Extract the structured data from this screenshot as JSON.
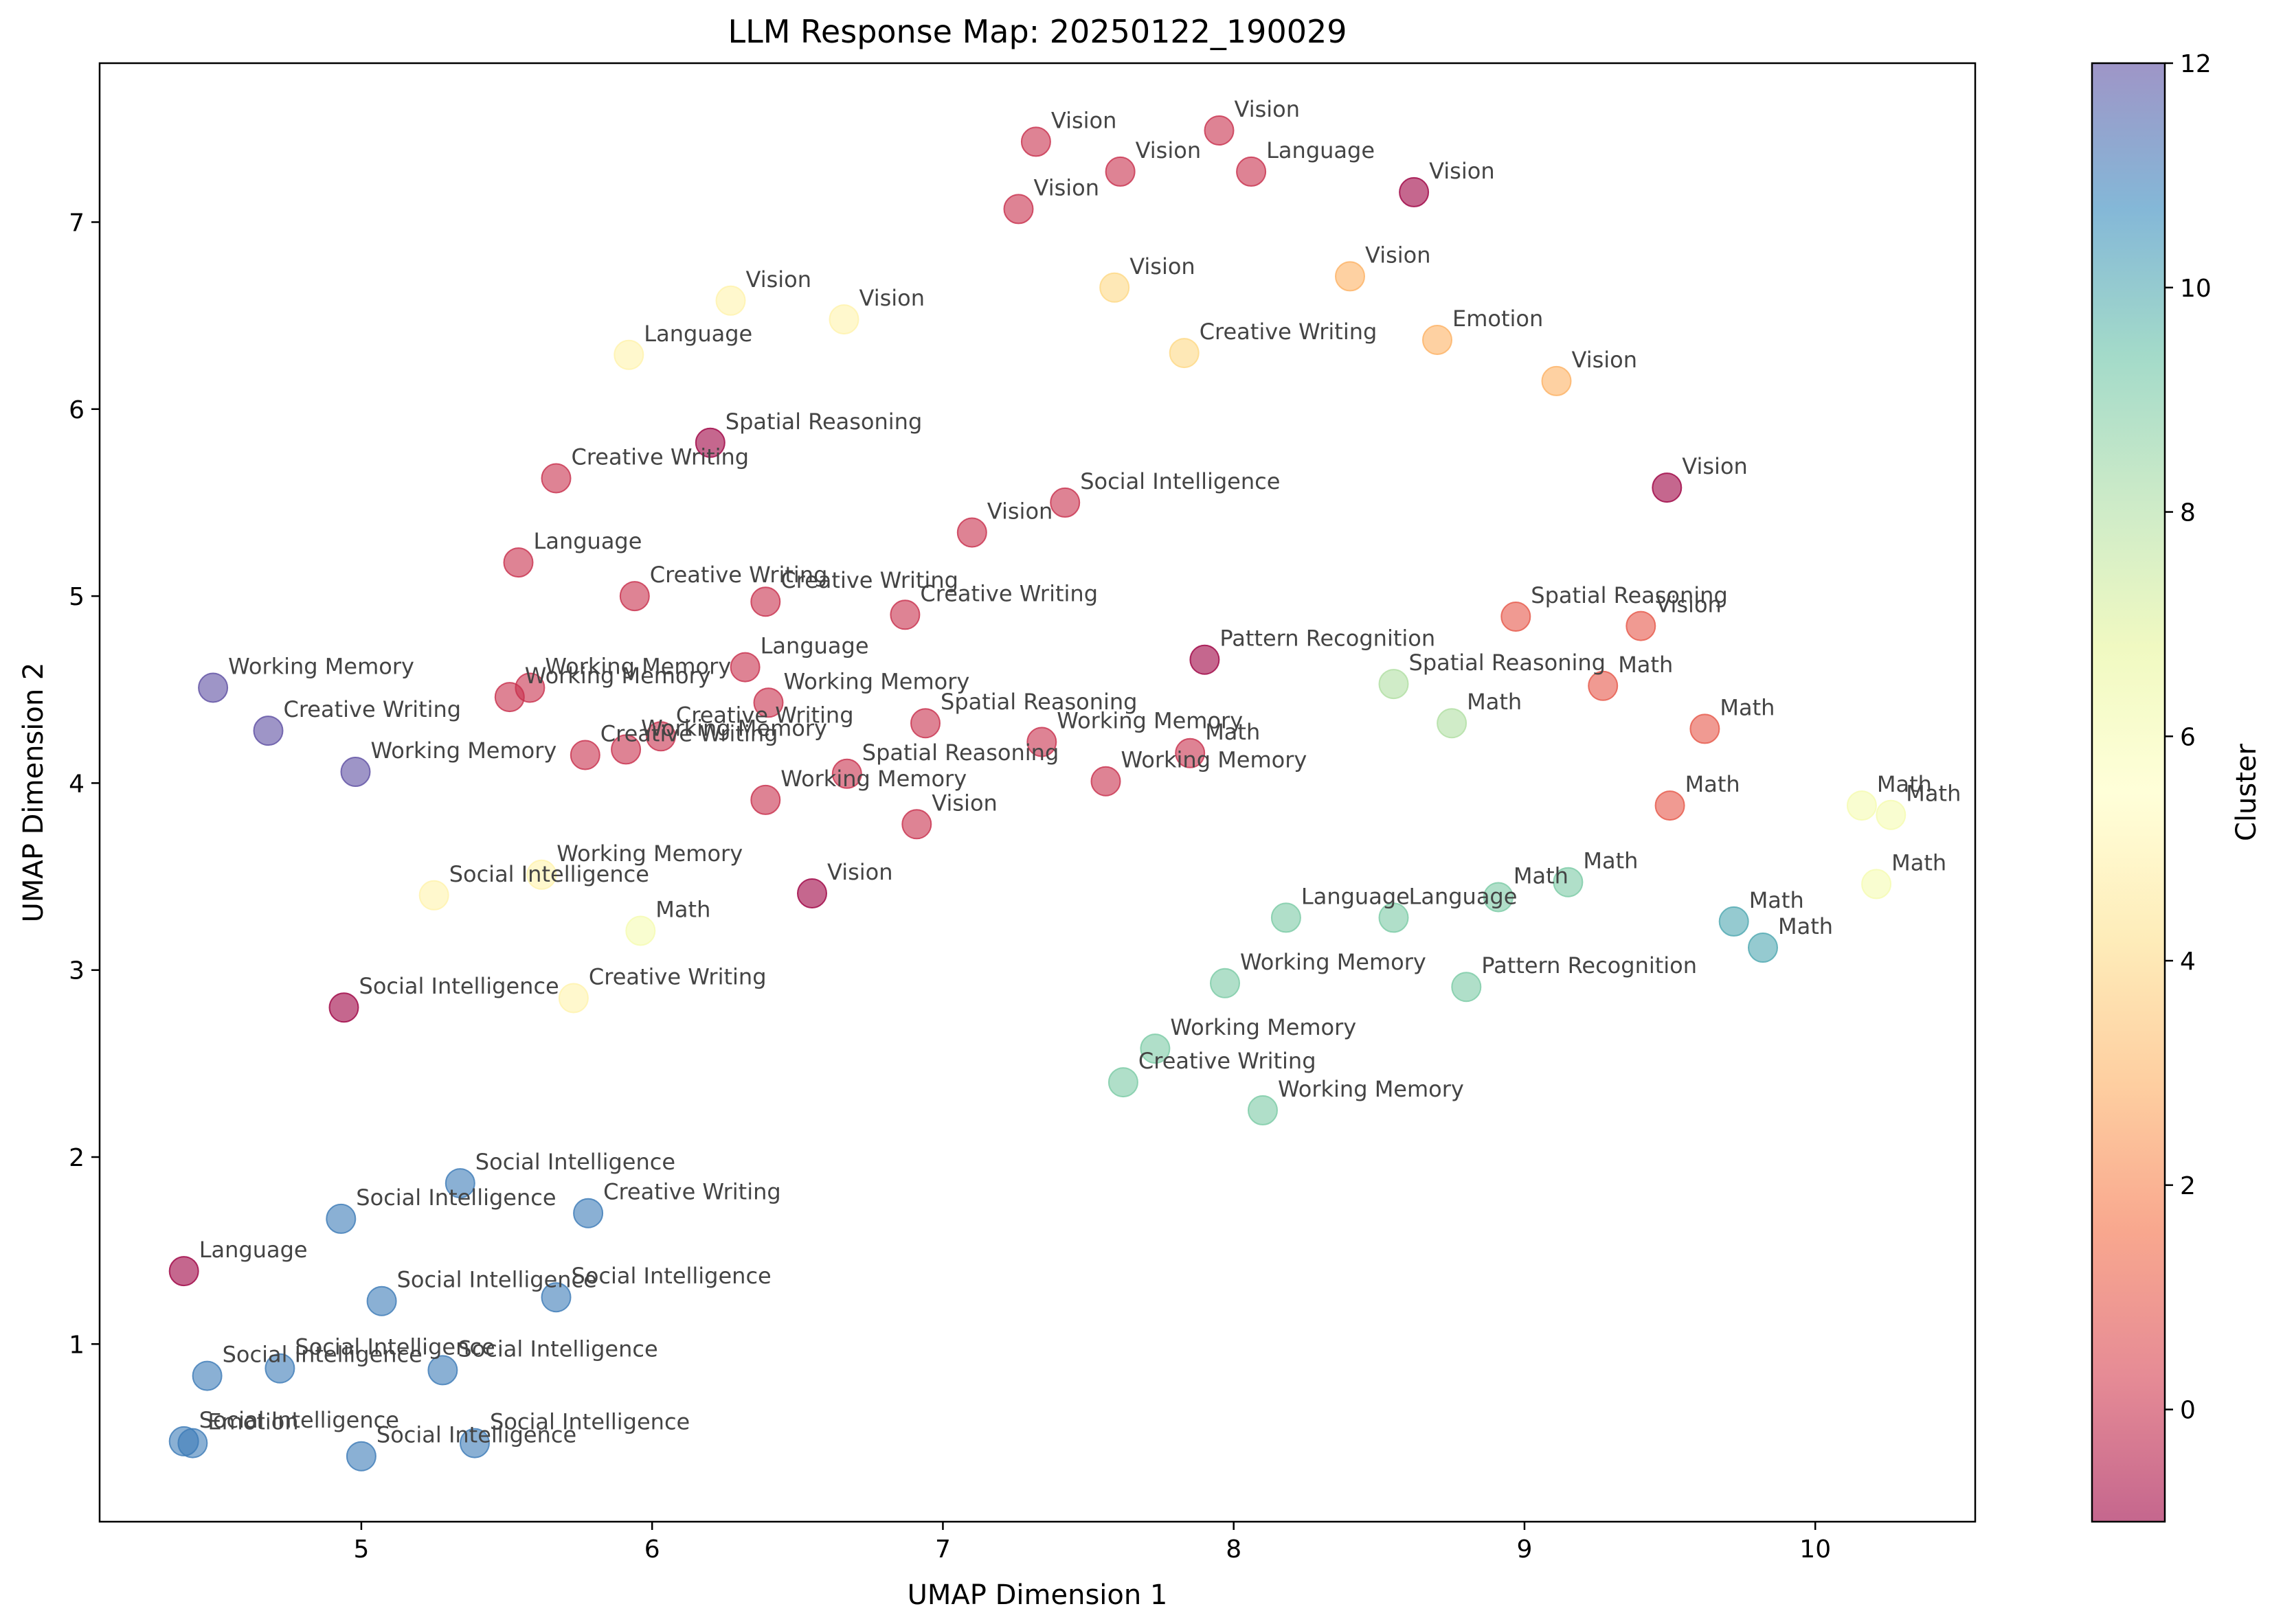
{
  "chart_data": {
    "type": "scatter",
    "title": "LLM Response Map: 20250122_190029",
    "xlabel": "UMAP Dimension 1",
    "ylabel": "UMAP Dimension 2",
    "xlim": [
      4.1,
      10.55
    ],
    "ylim": [
      0.05,
      7.85
    ],
    "xticks": [
      5,
      6,
      7,
      8,
      9,
      10
    ],
    "yticks": [
      1,
      2,
      3,
      4,
      5,
      6,
      7
    ],
    "grid": false,
    "colorbar": {
      "label": "Cluster",
      "min": -1,
      "max": 12,
      "ticks": [
        0,
        2,
        4,
        6,
        8,
        10,
        12
      ],
      "colormap": "Spectral",
      "alpha": 0.6
    },
    "points": [
      {
        "x": 7.32,
        "y": 7.43,
        "cluster": 0,
        "label": "Vision"
      },
      {
        "x": 7.95,
        "y": 7.49,
        "cluster": 0,
        "label": "Vision"
      },
      {
        "x": 7.61,
        "y": 7.27,
        "cluster": 0,
        "label": "Vision"
      },
      {
        "x": 8.06,
        "y": 7.27,
        "cluster": 0,
        "label": "Language"
      },
      {
        "x": 7.26,
        "y": 7.07,
        "cluster": 0,
        "label": "Vision"
      },
      {
        "x": 8.62,
        "y": 7.16,
        "cluster": -1,
        "label": "Vision"
      },
      {
        "x": 6.27,
        "y": 6.58,
        "cluster": 5,
        "label": "Vision"
      },
      {
        "x": 6.66,
        "y": 6.48,
        "cluster": 5,
        "label": "Vision"
      },
      {
        "x": 7.59,
        "y": 6.65,
        "cluster": 4,
        "label": "Vision"
      },
      {
        "x": 8.4,
        "y": 6.71,
        "cluster": 3,
        "label": "Vision"
      },
      {
        "x": 5.92,
        "y": 6.29,
        "cluster": 5,
        "label": "Language"
      },
      {
        "x": 7.83,
        "y": 6.3,
        "cluster": 4,
        "label": "Creative Writing"
      },
      {
        "x": 8.7,
        "y": 6.37,
        "cluster": 3,
        "label": "Emotion"
      },
      {
        "x": 9.11,
        "y": 6.15,
        "cluster": 3,
        "label": "Vision"
      },
      {
        "x": 6.2,
        "y": 5.82,
        "cluster": -1,
        "label": "Spatial Reasoning"
      },
      {
        "x": 5.67,
        "y": 5.63,
        "cluster": 0,
        "label": "Creative Writing"
      },
      {
        "x": 7.42,
        "y": 5.5,
        "cluster": 0,
        "label": "Social Intelligence"
      },
      {
        "x": 9.49,
        "y": 5.58,
        "cluster": -1,
        "label": "Vision"
      },
      {
        "x": 7.1,
        "y": 5.34,
        "cluster": 0,
        "label": "Vision"
      },
      {
        "x": 5.54,
        "y": 5.18,
        "cluster": 0,
        "label": "Language"
      },
      {
        "x": 5.94,
        "y": 5.0,
        "cluster": 0,
        "label": "Creative Writing"
      },
      {
        "x": 6.39,
        "y": 4.97,
        "cluster": 0,
        "label": "Creative Writing"
      },
      {
        "x": 6.87,
        "y": 4.9,
        "cluster": 0,
        "label": "Creative Writing"
      },
      {
        "x": 8.97,
        "y": 4.89,
        "cluster": 1,
        "label": "Spatial Reasoning"
      },
      {
        "x": 9.4,
        "y": 4.84,
        "cluster": 1,
        "label": "Vision"
      },
      {
        "x": 7.9,
        "y": 4.66,
        "cluster": -1,
        "label": "Pattern Recognition"
      },
      {
        "x": 6.32,
        "y": 4.62,
        "cluster": 0,
        "label": "Language"
      },
      {
        "x": 8.55,
        "y": 4.53,
        "cluster": 8,
        "label": "Spatial Reasoning"
      },
      {
        "x": 9.27,
        "y": 4.52,
        "cluster": 1,
        "label": "Math"
      },
      {
        "x": 4.49,
        "y": 4.51,
        "cluster": 12,
        "label": "Working Memory"
      },
      {
        "x": 5.58,
        "y": 4.51,
        "cluster": 0,
        "label": "Working Memory"
      },
      {
        "x": 5.51,
        "y": 4.46,
        "cluster": 0,
        "label": "Working Memory"
      },
      {
        "x": 6.4,
        "y": 4.43,
        "cluster": 0,
        "label": "Working Memory"
      },
      {
        "x": 8.75,
        "y": 4.32,
        "cluster": 8,
        "label": "Math"
      },
      {
        "x": 6.94,
        "y": 4.32,
        "cluster": 0,
        "label": "Spatial Reasoning"
      },
      {
        "x": 9.62,
        "y": 4.29,
        "cluster": 1,
        "label": "Math"
      },
      {
        "x": 4.68,
        "y": 4.28,
        "cluster": 12,
        "label": "Creative Writing"
      },
      {
        "x": 6.03,
        "y": 4.25,
        "cluster": 0,
        "label": "Creative Writing"
      },
      {
        "x": 7.34,
        "y": 4.22,
        "cluster": 0,
        "label": "Working Memory"
      },
      {
        "x": 5.91,
        "y": 4.18,
        "cluster": 0,
        "label": "Working Memory"
      },
      {
        "x": 5.77,
        "y": 4.15,
        "cluster": 0,
        "label": "Creative Writing"
      },
      {
        "x": 7.85,
        "y": 4.16,
        "cluster": 0,
        "label": "Math"
      },
      {
        "x": 4.98,
        "y": 4.06,
        "cluster": 12,
        "label": "Working Memory"
      },
      {
        "x": 6.67,
        "y": 4.05,
        "cluster": 0,
        "label": "Spatial Reasoning"
      },
      {
        "x": 7.56,
        "y": 4.01,
        "cluster": 0,
        "label": "Working Memory"
      },
      {
        "x": 6.39,
        "y": 3.91,
        "cluster": 0,
        "label": "Working Memory"
      },
      {
        "x": 10.16,
        "y": 3.88,
        "cluster": 6,
        "label": "Math"
      },
      {
        "x": 9.5,
        "y": 3.88,
        "cluster": 1,
        "label": "Math"
      },
      {
        "x": 10.26,
        "y": 3.83,
        "cluster": 6,
        "label": "Math"
      },
      {
        "x": 6.91,
        "y": 3.78,
        "cluster": 0,
        "label": "Vision"
      },
      {
        "x": 5.62,
        "y": 3.51,
        "cluster": 5,
        "label": "Working Memory"
      },
      {
        "x": 9.15,
        "y": 3.47,
        "cluster": 9,
        "label": "Math"
      },
      {
        "x": 10.21,
        "y": 3.46,
        "cluster": 6,
        "label": "Math"
      },
      {
        "x": 6.55,
        "y": 3.41,
        "cluster": -1,
        "label": "Vision"
      },
      {
        "x": 5.25,
        "y": 3.4,
        "cluster": 5,
        "label": "Social Intelligence"
      },
      {
        "x": 8.91,
        "y": 3.39,
        "cluster": 9,
        "label": "Math"
      },
      {
        "x": 8.18,
        "y": 3.28,
        "cluster": 9,
        "label": "Language"
      },
      {
        "x": 8.55,
        "y": 3.28,
        "cluster": 9,
        "label": "Language"
      },
      {
        "x": 9.72,
        "y": 3.26,
        "cluster": 10,
        "label": "Math"
      },
      {
        "x": 5.96,
        "y": 3.21,
        "cluster": 6,
        "label": "Math"
      },
      {
        "x": 9.82,
        "y": 3.12,
        "cluster": 10,
        "label": "Math"
      },
      {
        "x": 7.97,
        "y": 2.93,
        "cluster": 9,
        "label": "Working Memory"
      },
      {
        "x": 8.8,
        "y": 2.91,
        "cluster": 9,
        "label": "Pattern Recognition"
      },
      {
        "x": 5.73,
        "y": 2.85,
        "cluster": 5,
        "label": "Creative Writing"
      },
      {
        "x": 4.94,
        "y": 2.8,
        "cluster": -1,
        "label": "Social Intelligence"
      },
      {
        "x": 7.73,
        "y": 2.58,
        "cluster": 9,
        "label": "Working Memory"
      },
      {
        "x": 7.62,
        "y": 2.4,
        "cluster": 9,
        "label": "Creative Writing"
      },
      {
        "x": 8.1,
        "y": 2.25,
        "cluster": 9,
        "label": "Working Memory"
      },
      {
        "x": 5.34,
        "y": 1.86,
        "cluster": 11,
        "label": "Social Intelligence"
      },
      {
        "x": 5.78,
        "y": 1.7,
        "cluster": 11,
        "label": "Creative Writing"
      },
      {
        "x": 4.93,
        "y": 1.67,
        "cluster": 11,
        "label": "Social Intelligence"
      },
      {
        "x": 4.39,
        "y": 1.39,
        "cluster": -1,
        "label": "Language"
      },
      {
        "x": 5.67,
        "y": 1.25,
        "cluster": 11,
        "label": "Social Intelligence"
      },
      {
        "x": 5.07,
        "y": 1.23,
        "cluster": 11,
        "label": "Social Intelligence"
      },
      {
        "x": 4.72,
        "y": 0.87,
        "cluster": 11,
        "label": "Social Intelligence"
      },
      {
        "x": 5.28,
        "y": 0.86,
        "cluster": 11,
        "label": "Social Intelligence"
      },
      {
        "x": 4.47,
        "y": 0.83,
        "cluster": 11,
        "label": "Social Intelligence"
      },
      {
        "x": 4.39,
        "y": 0.48,
        "cluster": 11,
        "label": "Social Intelligence"
      },
      {
        "x": 4.42,
        "y": 0.47,
        "cluster": 11,
        "label": "Emotion"
      },
      {
        "x": 5.39,
        "y": 0.47,
        "cluster": 11,
        "label": "Social Intelligence"
      },
      {
        "x": 5.0,
        "y": 0.4,
        "cluster": 11,
        "label": "Social Intelligence"
      }
    ]
  }
}
